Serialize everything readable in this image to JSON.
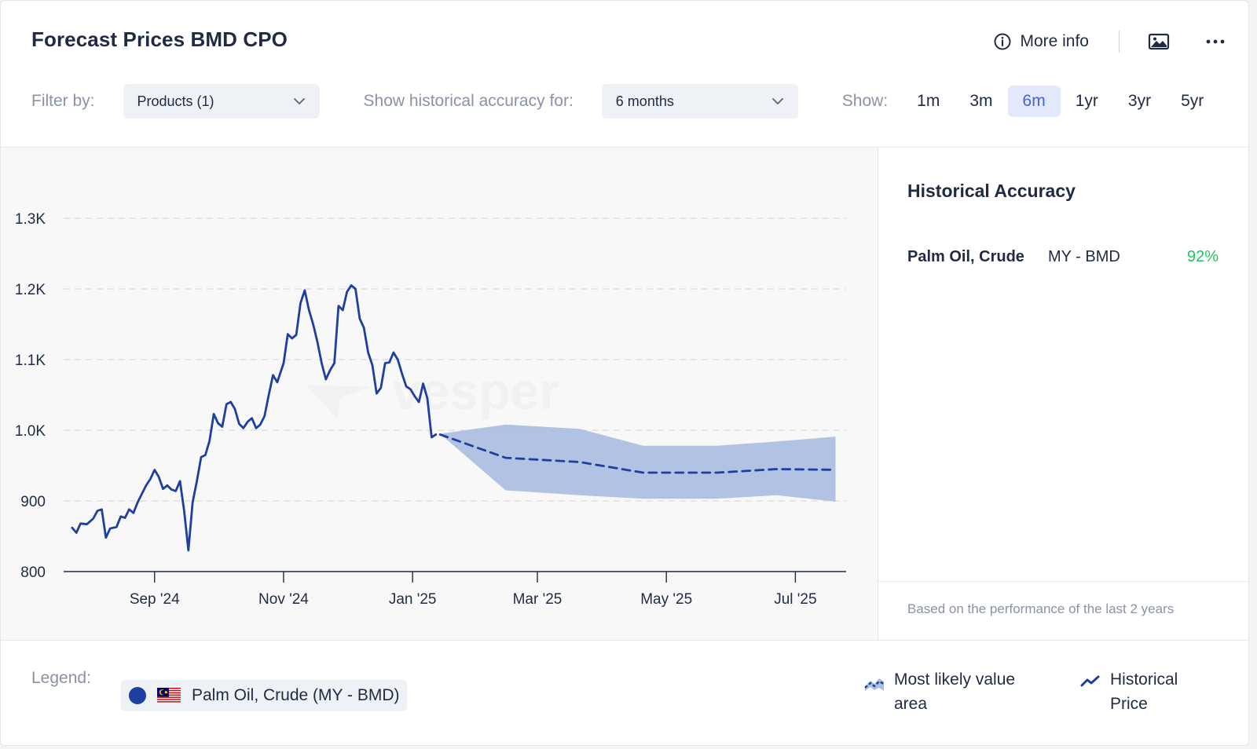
{
  "header": {
    "title": "Forecast Prices BMD CPO",
    "more_info_label": "More info"
  },
  "filters": {
    "filter_by_label": "Filter by:",
    "products_value": "Products (1)",
    "historical_label": "Show historical accuracy for:",
    "historical_value": "6 months",
    "show_label": "Show:",
    "ranges": [
      "1m",
      "3m",
      "6m",
      "1yr",
      "3yr",
      "5yr"
    ],
    "active_range": "6m"
  },
  "watermark": "vesper",
  "side_panel": {
    "title": "Historical Accuracy",
    "product": "Palm Oil, Crude",
    "market": "MY - BMD",
    "accuracy": "92%",
    "note": "Based on the performance of the last 2 years"
  },
  "legend": {
    "label": "Legend:",
    "series_label": "Palm Oil, Crude (MY - BMD)",
    "key_area_label_1": "Most likely value",
    "key_area_label_2": "area",
    "key_price_label_1": "Historical",
    "key_price_label_2": "Price"
  },
  "colors": {
    "line": "#1e3fa0",
    "band": "#adbfe0",
    "accent_active": "#4361d8",
    "accuracy_green": "#22c55e"
  },
  "chart_data": {
    "type": "line",
    "ylim": [
      800,
      1300
    ],
    "yticks": [
      800,
      900,
      1000,
      1100,
      1200,
      1300
    ],
    "ytick_labels": [
      "800",
      "900",
      "1.0K",
      "1.1K",
      "1.2K",
      "1.3K"
    ],
    "xlim": [
      "2024-07-20",
      "2025-07-25"
    ],
    "xticks": [
      "2024-09-01",
      "2024-11-01",
      "2025-01-01",
      "2025-03-01",
      "2025-05-01",
      "2025-07-01"
    ],
    "xtick_labels": [
      "Sep '24",
      "Nov '24",
      "Jan '25",
      "Mar '25",
      "May '25",
      "Jul '25"
    ],
    "grid": true,
    "series": [
      {
        "name": "Historical Price",
        "style": "solid",
        "points": [
          [
            "2024-07-24",
            862
          ],
          [
            "2024-07-26",
            855
          ],
          [
            "2024-07-28",
            868
          ],
          [
            "2024-07-31",
            867
          ],
          [
            "2024-08-03",
            875
          ],
          [
            "2024-08-05",
            886
          ],
          [
            "2024-08-07",
            888
          ],
          [
            "2024-08-09",
            848
          ],
          [
            "2024-08-11",
            861
          ],
          [
            "2024-08-14",
            863
          ],
          [
            "2024-08-16",
            878
          ],
          [
            "2024-08-18",
            876
          ],
          [
            "2024-08-20",
            888
          ],
          [
            "2024-08-22",
            883
          ],
          [
            "2024-08-24",
            898
          ],
          [
            "2024-08-26",
            910
          ],
          [
            "2024-08-28",
            922
          ],
          [
            "2024-08-30",
            931
          ],
          [
            "2024-09-01",
            944
          ],
          [
            "2024-09-03",
            934
          ],
          [
            "2024-09-05",
            917
          ],
          [
            "2024-09-07",
            922
          ],
          [
            "2024-09-09",
            916
          ],
          [
            "2024-09-11",
            914
          ],
          [
            "2024-09-13",
            928
          ],
          [
            "2024-09-15",
            886
          ],
          [
            "2024-09-17",
            830
          ],
          [
            "2024-09-19",
            898
          ],
          [
            "2024-09-21",
            928
          ],
          [
            "2024-09-23",
            962
          ],
          [
            "2024-09-25",
            965
          ],
          [
            "2024-09-27",
            985
          ],
          [
            "2024-09-29",
            1023
          ],
          [
            "2024-10-01",
            1010
          ],
          [
            "2024-10-03",
            1005
          ],
          [
            "2024-10-05",
            1037
          ],
          [
            "2024-10-07",
            1040
          ],
          [
            "2024-10-09",
            1030
          ],
          [
            "2024-10-11",
            1009
          ],
          [
            "2024-10-13",
            1003
          ],
          [
            "2024-10-15",
            1012
          ],
          [
            "2024-10-17",
            1017
          ],
          [
            "2024-10-19",
            1003
          ],
          [
            "2024-10-21",
            1008
          ],
          [
            "2024-10-23",
            1020
          ],
          [
            "2024-10-25",
            1050
          ],
          [
            "2024-10-27",
            1078
          ],
          [
            "2024-10-29",
            1068
          ],
          [
            "2024-11-01",
            1095
          ],
          [
            "2024-11-03",
            1136
          ],
          [
            "2024-11-05",
            1130
          ],
          [
            "2024-11-07",
            1135
          ],
          [
            "2024-11-09",
            1180
          ],
          [
            "2024-11-11",
            1198
          ],
          [
            "2024-11-13",
            1170
          ],
          [
            "2024-11-15",
            1150
          ],
          [
            "2024-11-17",
            1125
          ],
          [
            "2024-11-19",
            1095
          ],
          [
            "2024-11-21",
            1072
          ],
          [
            "2024-11-23",
            1085
          ],
          [
            "2024-11-25",
            1095
          ],
          [
            "2024-11-27",
            1176
          ],
          [
            "2024-11-29",
            1170
          ],
          [
            "2024-12-01",
            1196
          ],
          [
            "2024-12-03",
            1205
          ],
          [
            "2024-12-05",
            1200
          ],
          [
            "2024-12-07",
            1158
          ],
          [
            "2024-12-09",
            1145
          ],
          [
            "2024-12-11",
            1110
          ],
          [
            "2024-12-13",
            1092
          ],
          [
            "2024-12-15",
            1052
          ],
          [
            "2024-12-17",
            1060
          ],
          [
            "2024-12-19",
            1095
          ],
          [
            "2024-12-21",
            1096
          ],
          [
            "2024-12-23",
            1110
          ],
          [
            "2024-12-25",
            1100
          ],
          [
            "2024-12-27",
            1080
          ],
          [
            "2024-12-29",
            1062
          ],
          [
            "2024-12-31",
            1058
          ],
          [
            "2025-01-02",
            1048
          ],
          [
            "2025-01-04",
            1040
          ],
          [
            "2025-01-06",
            1066
          ],
          [
            "2025-01-08",
            1045
          ],
          [
            "2025-01-10",
            990
          ],
          [
            "2025-01-12",
            994
          ]
        ]
      },
      {
        "name": "Most likely value area",
        "style": "band",
        "points": [
          [
            "2025-01-14",
            995,
            995
          ],
          [
            "2025-02-14",
            915,
            1008
          ],
          [
            "2025-03-21",
            908,
            1002
          ],
          [
            "2025-04-20",
            903,
            978
          ],
          [
            "2025-05-25",
            903,
            978
          ],
          [
            "2025-06-22",
            908,
            984
          ],
          [
            "2025-07-20",
            899,
            991
          ]
        ]
      },
      {
        "name": "Forecast",
        "style": "dashed",
        "points": [
          [
            "2025-01-14",
            994
          ],
          [
            "2025-02-14",
            961
          ],
          [
            "2025-03-21",
            955
          ],
          [
            "2025-04-20",
            940
          ],
          [
            "2025-05-25",
            940
          ],
          [
            "2025-06-22",
            945
          ],
          [
            "2025-07-20",
            944
          ]
        ]
      }
    ]
  }
}
